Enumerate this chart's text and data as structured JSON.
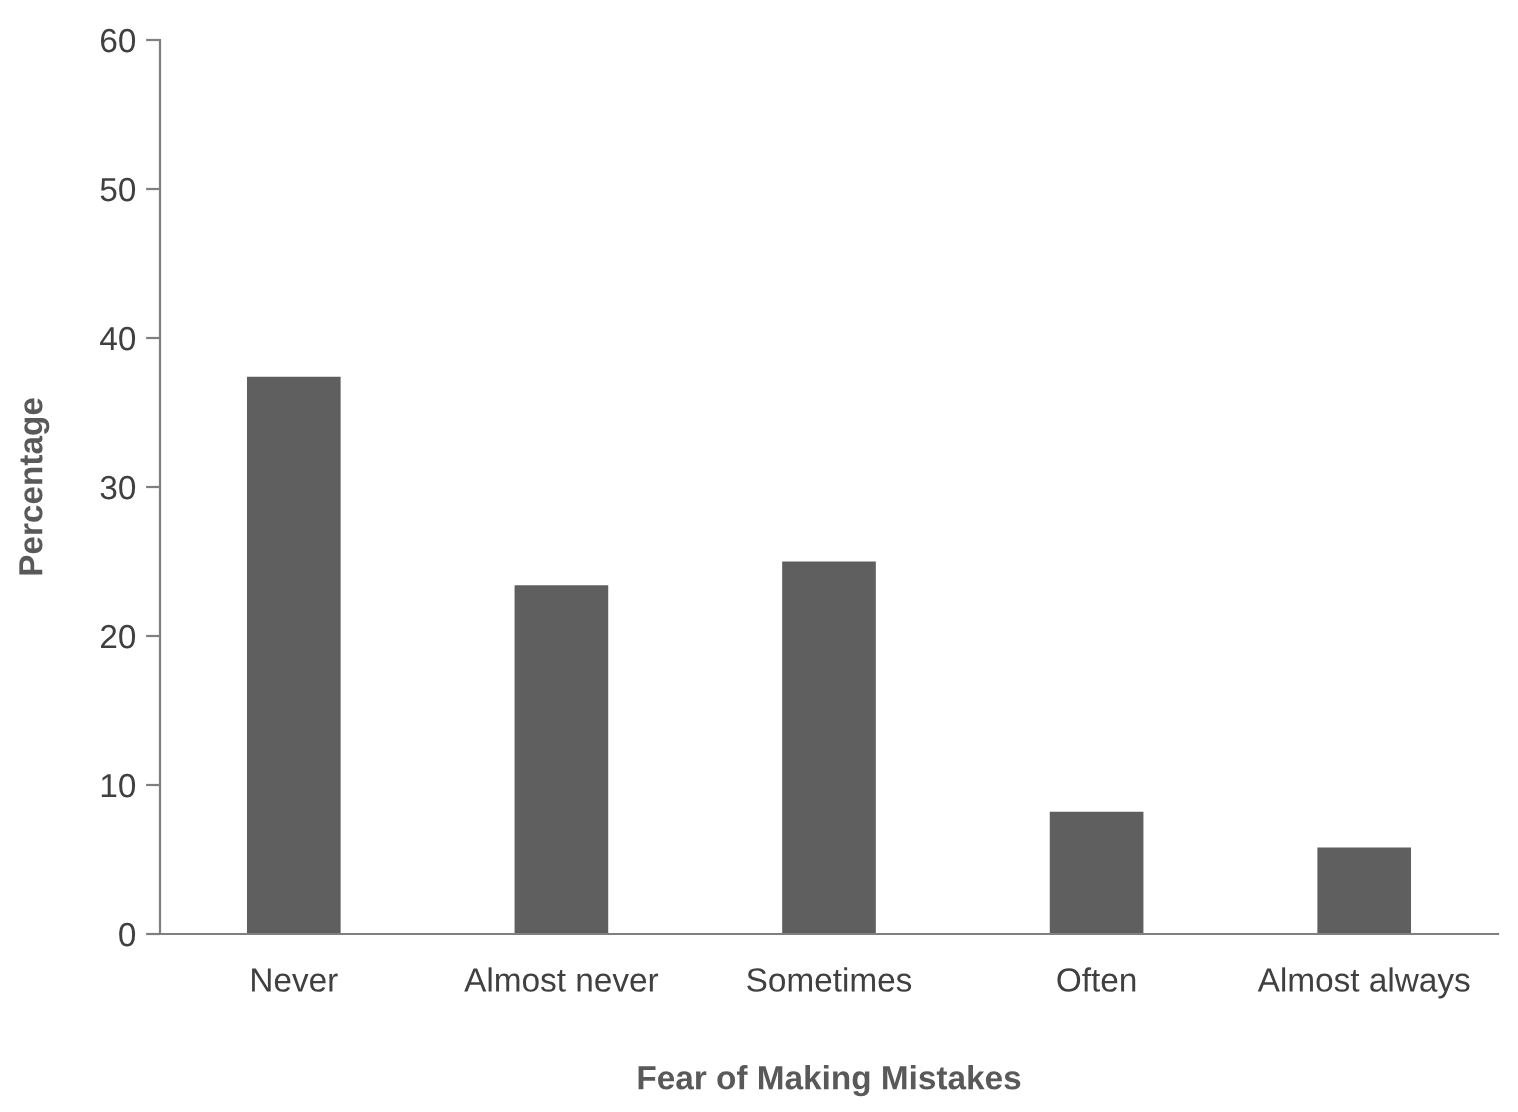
{
  "chart_data": {
    "type": "bar",
    "xlabel": "Fear of Making Mistakes",
    "ylabel": "Percentage",
    "categories": [
      "Never",
      "Almost never",
      "Sometimes",
      "Often",
      "Almost always"
    ],
    "values": [
      37.4,
      23.4,
      25.0,
      8.2,
      5.8
    ],
    "color": "#5f5f5f",
    "ylim": [
      0,
      60
    ],
    "yticks": [
      0,
      10,
      20,
      30,
      40,
      50,
      60
    ],
    "grid": false,
    "legend": false
  }
}
